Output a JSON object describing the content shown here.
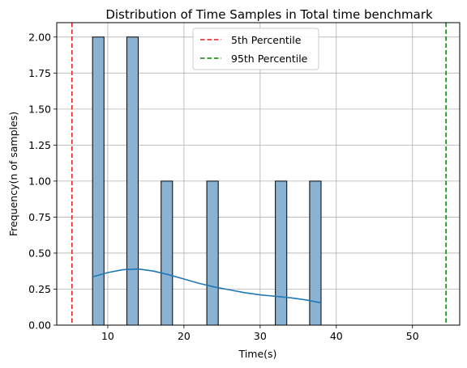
{
  "chart_data": {
    "type": "bar",
    "title": "Distribution of Time Samples in Total time benchmark",
    "xlabel": "Time(s)",
    "ylabel": "Frequency(n of samples)",
    "xlim": [
      3.3,
      56.2
    ],
    "ylim": [
      0,
      2.1
    ],
    "x_ticks": [
      10,
      20,
      30,
      40,
      50
    ],
    "y_ticks": [
      0.0,
      0.25,
      0.5,
      0.75,
      1.0,
      1.25,
      1.5,
      1.75,
      2.0
    ],
    "y_tick_labels": [
      "0.00",
      "0.25",
      "0.50",
      "0.75",
      "1.00",
      "1.25",
      "1.50",
      "1.75",
      "2.00"
    ],
    "grid": true,
    "bar_color": "#8ab3d3",
    "bars": [
      {
        "x0": 8.0,
        "x1": 9.5,
        "value": 2
      },
      {
        "x0": 12.5,
        "x1": 14.0,
        "value": 2
      },
      {
        "x0": 17.0,
        "x1": 18.5,
        "value": 1
      },
      {
        "x0": 23.0,
        "x1": 24.5,
        "value": 1
      },
      {
        "x0": 32.0,
        "x1": 33.5,
        "value": 1
      },
      {
        "x0": 36.5,
        "x1": 38.0,
        "value": 1
      }
    ],
    "kde": {
      "color": "#1f77b4",
      "x": [
        8.0,
        10.0,
        12.0,
        14.0,
        16.0,
        18.0,
        20.0,
        22.0,
        24.0,
        26.0,
        28.0,
        30.0,
        32.0,
        34.0,
        36.0,
        38.0
      ],
      "y": [
        0.335,
        0.365,
        0.385,
        0.39,
        0.375,
        0.35,
        0.32,
        0.29,
        0.265,
        0.245,
        0.225,
        0.21,
        0.2,
        0.19,
        0.175,
        0.155
      ]
    },
    "vlines": [
      {
        "name": "5th Percentile",
        "x": 5.3,
        "color": "#e31a1c"
      },
      {
        "name": "95th Percentile",
        "x": 54.4,
        "color": "#008000"
      }
    ],
    "legend_position": "top-center"
  }
}
